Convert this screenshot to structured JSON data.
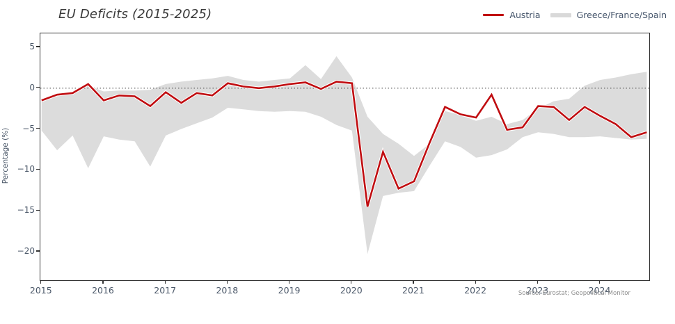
{
  "title": "EU Deficits (2015-2025)",
  "y_axis_label": "Percentage (%)",
  "source": "Source: Eurostat; Geopolitical Monitor",
  "legend": {
    "austria": {
      "label": "Austria",
      "color": "#c00c10"
    },
    "band": {
      "label": "Greece/France/Spain",
      "color": "#d9d9d9"
    }
  },
  "chart_data": {
    "type": "line",
    "title": "EU Deficits (2015-2025)",
    "ylabel": "Percentage (%)",
    "xlabel": "",
    "xlim": [
      2014.98,
      2024.79
    ],
    "ylim": [
      -23.5,
      6.7
    ],
    "x_ticks": [
      2015,
      2016,
      2017,
      2018,
      2019,
      2020,
      2021,
      2022,
      2023,
      2024
    ],
    "y_ticks": [
      5,
      0,
      -5,
      -10,
      -15,
      -20
    ],
    "zero_line": 0,
    "grid": false,
    "legend_position": "top-right",
    "colors": {
      "austria": "#c00c10",
      "band": "#dcdcdc",
      "zero_line": "#4d4d4d",
      "axis": "#333333"
    },
    "x": [
      2015.0,
      2015.25,
      2015.5,
      2015.75,
      2016.0,
      2016.25,
      2016.5,
      2016.75,
      2017.0,
      2017.25,
      2017.5,
      2017.75,
      2018.0,
      2018.25,
      2018.5,
      2018.75,
      2019.0,
      2019.25,
      2019.5,
      2019.75,
      2020.0,
      2020.25,
      2020.5,
      2020.75,
      2021.0,
      2021.25,
      2021.5,
      2021.75,
      2022.0,
      2022.25,
      2022.5,
      2022.75,
      2023.0,
      2023.25,
      2023.5,
      2023.75,
      2024.0,
      2024.25,
      2024.5,
      2024.75
    ],
    "series": [
      {
        "name": "Austria",
        "type": "line",
        "values": [
          -1.5,
          -0.8,
          -0.6,
          0.5,
          -1.5,
          -0.9,
          -1.0,
          -2.2,
          -0.5,
          -1.8,
          -0.6,
          -0.9,
          0.6,
          0.2,
          0.0,
          0.2,
          0.5,
          0.7,
          -0.1,
          0.8,
          0.6,
          -14.5,
          -7.8,
          -12.3,
          -11.4,
          -6.7,
          -2.3,
          -3.2,
          -3.6,
          -0.8,
          -5.1,
          -4.8,
          -2.2,
          -2.3,
          -3.9,
          -2.3,
          -3.4,
          -4.4,
          -6.0,
          -5.4
        ]
      },
      {
        "name": "Greece/France/Spain (upper bound)",
        "type": "band-upper",
        "values": [
          -1.5,
          -1.0,
          -0.7,
          0.3,
          -0.4,
          -0.3,
          -0.3,
          -0.2,
          0.5,
          0.8,
          1.0,
          1.2,
          1.5,
          1.0,
          0.8,
          1.0,
          1.2,
          2.8,
          1.1,
          3.9,
          1.3,
          -3.5,
          -5.6,
          -6.8,
          -8.3,
          -6.8,
          -2.8,
          -3.3,
          -4.0,
          -3.5,
          -4.4,
          -3.9,
          -2.5,
          -1.6,
          -1.3,
          0.3,
          1.0,
          1.3,
          1.7,
          2.0
        ]
      },
      {
        "name": "Greece/France/Spain (lower bound)",
        "type": "band-lower",
        "values": [
          -5.2,
          -7.6,
          -5.8,
          -9.8,
          -5.9,
          -6.3,
          -6.5,
          -9.6,
          -5.8,
          -5.0,
          -4.3,
          -3.6,
          -2.4,
          -2.6,
          -2.8,
          -2.9,
          -2.8,
          -2.9,
          -3.5,
          -4.5,
          -5.2,
          -20.3,
          -13.2,
          -12.8,
          -12.6,
          -9.5,
          -6.5,
          -7.2,
          -8.5,
          -8.2,
          -7.5,
          -6.0,
          -5.4,
          -5.6,
          -6.0,
          -6.0,
          -5.9,
          -6.1,
          -6.3,
          -6.2
        ]
      }
    ]
  }
}
